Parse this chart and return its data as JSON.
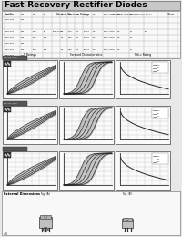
{
  "title": "Fast-Recovery Rectifier Diodes",
  "page_bg": "#e8e8e8",
  "title_bg": "#c8c8c8",
  "title_color": "#000000",
  "title_fontsize": 6.5,
  "graph_row_labels": [
    "FMU-12~15S",
    "FMU-22~26S",
    "FMU-32~36S"
  ],
  "graph_col_labels": [
    "Tc Ratings",
    "Forward Characteristics",
    "Rth-c Rating"
  ],
  "dim_title": "External Dimensions",
  "curve_color": "#000000",
  "grid_color": "#bbbbbb",
  "table_inner_color": "#f5f5f5"
}
